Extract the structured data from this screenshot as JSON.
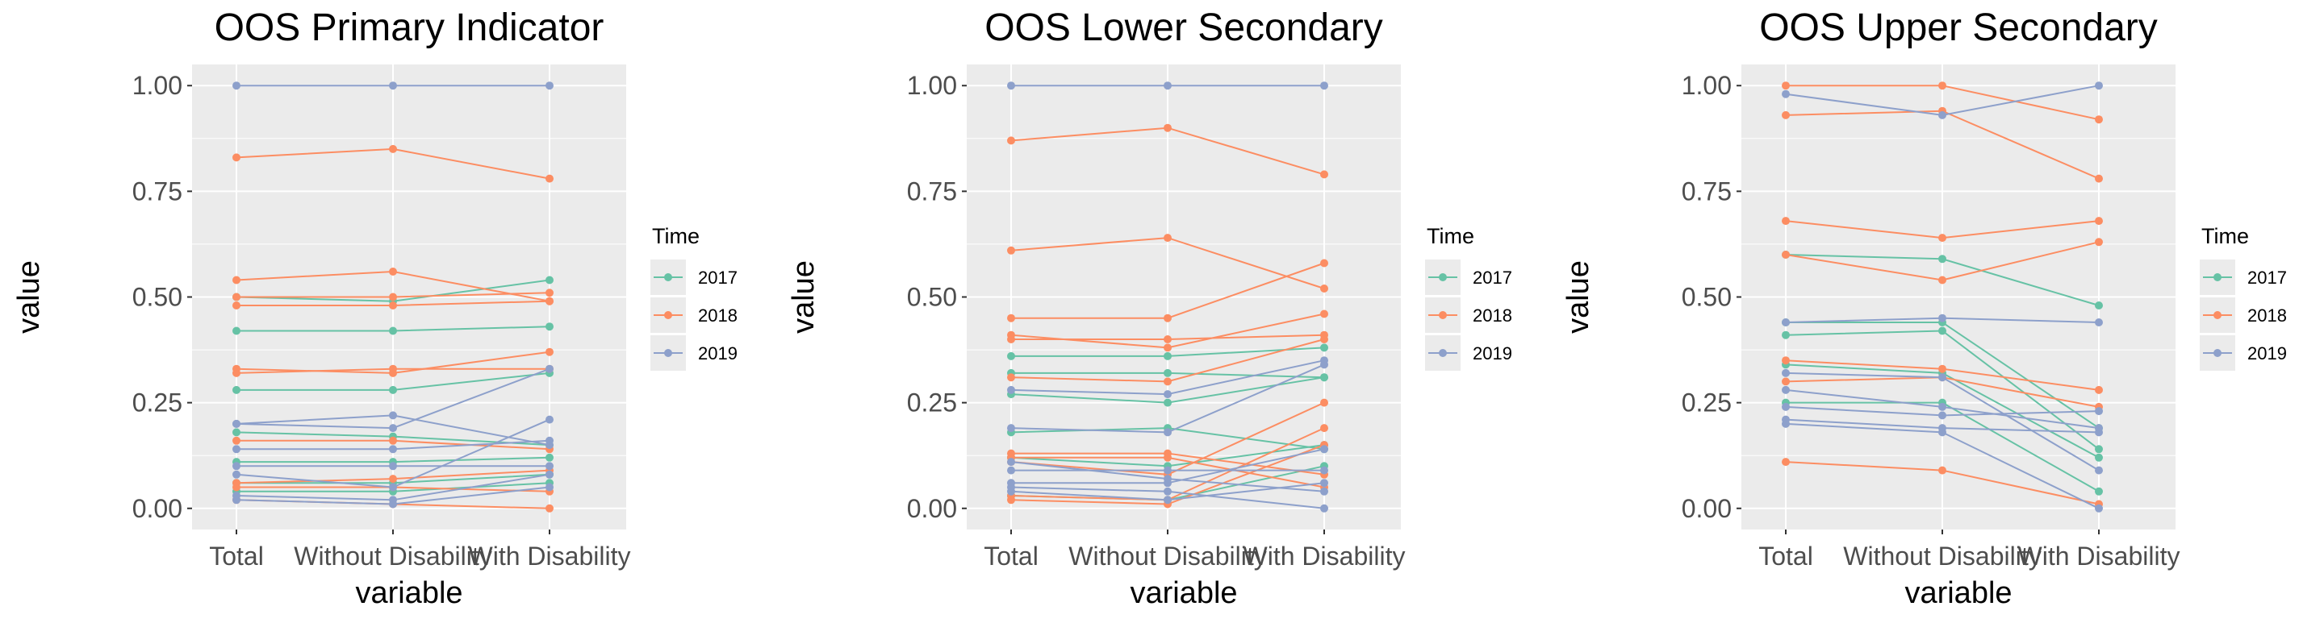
{
  "figure": {
    "axis_label_x": "variable",
    "axis_label_y": "value",
    "legend_title": "Time",
    "colors": {
      "2017": "#66C2A5",
      "2018": "#FC8D62",
      "2019": "#8DA0CB",
      "panel_bg": "#EBEBEB",
      "grid": "#FFFFFF"
    }
  },
  "chart_data": [
    {
      "type": "line",
      "title": "OOS Primary Indicator",
      "xlabel": "variable",
      "ylabel": "value",
      "categories": [
        "Total",
        "Without Disability",
        "With Disability"
      ],
      "ylim": [
        -0.05,
        1.05
      ],
      "yticks": [
        "0.00",
        "0.25",
        "0.50",
        "0.75",
        "1.00"
      ],
      "grid": true,
      "legend": {
        "title": "Time",
        "position": "right",
        "entries": [
          "2017",
          "2018",
          "2019"
        ]
      },
      "series": [
        {
          "time": "2017",
          "values": [
            0.5,
            0.49,
            0.54
          ]
        },
        {
          "time": "2017",
          "values": [
            0.42,
            0.42,
            0.43
          ]
        },
        {
          "time": "2017",
          "values": [
            0.28,
            0.28,
            0.32
          ]
        },
        {
          "time": "2017",
          "values": [
            0.18,
            0.17,
            0.15
          ]
        },
        {
          "time": "2017",
          "values": [
            0.11,
            0.11,
            0.12
          ]
        },
        {
          "time": "2017",
          "values": [
            0.06,
            0.06,
            0.08
          ]
        },
        {
          "time": "2017",
          "values": [
            0.04,
            0.04,
            0.06
          ]
        },
        {
          "time": "2018",
          "values": [
            0.83,
            0.85,
            0.78
          ]
        },
        {
          "time": "2018",
          "values": [
            0.54,
            0.56,
            0.49
          ]
        },
        {
          "time": "2018",
          "values": [
            0.5,
            0.5,
            0.51
          ]
        },
        {
          "time": "2018",
          "values": [
            0.48,
            0.48,
            0.49
          ]
        },
        {
          "time": "2018",
          "values": [
            0.33,
            0.32,
            0.37
          ]
        },
        {
          "time": "2018",
          "values": [
            0.32,
            0.33,
            0.33
          ]
        },
        {
          "time": "2018",
          "values": [
            0.16,
            0.16,
            0.14
          ]
        },
        {
          "time": "2018",
          "values": [
            0.06,
            0.07,
            0.09
          ]
        },
        {
          "time": "2018",
          "values": [
            0.05,
            0.05,
            0.04
          ]
        },
        {
          "time": "2018",
          "values": [
            0.02,
            0.01,
            0.0
          ]
        },
        {
          "time": "2019",
          "values": [
            1.0,
            1.0,
            1.0
          ]
        },
        {
          "time": "2019",
          "values": [
            0.2,
            0.22,
            0.15
          ]
        },
        {
          "time": "2019",
          "values": [
            0.2,
            0.19,
            0.33
          ]
        },
        {
          "time": "2019",
          "values": [
            0.14,
            0.14,
            0.16
          ]
        },
        {
          "time": "2019",
          "values": [
            0.1,
            0.1,
            0.1
          ]
        },
        {
          "time": "2019",
          "values": [
            0.08,
            0.05,
            0.21
          ]
        },
        {
          "time": "2019",
          "values": [
            0.03,
            0.02,
            0.08
          ]
        },
        {
          "time": "2019",
          "values": [
            0.02,
            0.01,
            0.05
          ]
        }
      ]
    },
    {
      "type": "line",
      "title": "OOS Lower Secondary",
      "xlabel": "variable",
      "ylabel": "value",
      "categories": [
        "Total",
        "Without Disability",
        "With Disability"
      ],
      "ylim": [
        -0.05,
        1.05
      ],
      "yticks": [
        "0.00",
        "0.25",
        "0.50",
        "0.75",
        "1.00"
      ],
      "grid": true,
      "legend": {
        "title": "Time",
        "position": "right",
        "entries": [
          "2017",
          "2018",
          "2019"
        ]
      },
      "series": [
        {
          "time": "2017",
          "values": [
            0.36,
            0.36,
            0.38
          ]
        },
        {
          "time": "2017",
          "values": [
            0.32,
            0.32,
            0.31
          ]
        },
        {
          "time": "2017",
          "values": [
            0.27,
            0.25,
            0.31
          ]
        },
        {
          "time": "2017",
          "values": [
            0.18,
            0.19,
            0.14
          ]
        },
        {
          "time": "2017",
          "values": [
            0.12,
            0.1,
            0.15
          ]
        },
        {
          "time": "2017",
          "values": [
            0.03,
            0.02,
            0.1
          ]
        },
        {
          "time": "2018",
          "values": [
            0.87,
            0.9,
            0.79
          ]
        },
        {
          "time": "2018",
          "values": [
            0.61,
            0.64,
            0.52
          ]
        },
        {
          "time": "2018",
          "values": [
            0.45,
            0.45,
            0.58
          ]
        },
        {
          "time": "2018",
          "values": [
            0.41,
            0.38,
            0.46
          ]
        },
        {
          "time": "2018",
          "values": [
            0.4,
            0.4,
            0.41
          ]
        },
        {
          "time": "2018",
          "values": [
            0.31,
            0.3,
            0.4
          ]
        },
        {
          "time": "2018",
          "values": [
            0.13,
            0.13,
            0.08
          ]
        },
        {
          "time": "2018",
          "values": [
            0.12,
            0.12,
            0.05
          ]
        },
        {
          "time": "2018",
          "values": [
            0.11,
            0.08,
            0.25
          ]
        },
        {
          "time": "2018",
          "values": [
            0.03,
            0.02,
            0.19
          ]
        },
        {
          "time": "2018",
          "values": [
            0.02,
            0.01,
            0.15
          ]
        },
        {
          "time": "2019",
          "values": [
            1.0,
            1.0,
            1.0
          ]
        },
        {
          "time": "2019",
          "values": [
            0.28,
            0.27,
            0.35
          ]
        },
        {
          "time": "2019",
          "values": [
            0.19,
            0.18,
            0.34
          ]
        },
        {
          "time": "2019",
          "values": [
            0.11,
            0.07,
            0.04
          ]
        },
        {
          "time": "2019",
          "values": [
            0.09,
            0.09,
            0.09
          ]
        },
        {
          "time": "2019",
          "values": [
            0.06,
            0.06,
            0.14
          ]
        },
        {
          "time": "2019",
          "values": [
            0.05,
            0.04,
            0.0
          ]
        },
        {
          "time": "2019",
          "values": [
            0.04,
            0.02,
            0.06
          ]
        }
      ]
    },
    {
      "type": "line",
      "title": "OOS Upper Secondary",
      "xlabel": "variable",
      "ylabel": "value",
      "categories": [
        "Total",
        "Without Disability",
        "With Disability"
      ],
      "ylim": [
        -0.05,
        1.05
      ],
      "yticks": [
        "0.00",
        "0.25",
        "0.50",
        "0.75",
        "1.00"
      ],
      "grid": true,
      "legend": {
        "title": "Time",
        "position": "right",
        "entries": [
          "2017",
          "2018",
          "2019"
        ]
      },
      "series": [
        {
          "time": "2017",
          "values": [
            0.6,
            0.59,
            0.48
          ]
        },
        {
          "time": "2017",
          "values": [
            0.44,
            0.44,
            0.19
          ]
        },
        {
          "time": "2017",
          "values": [
            0.41,
            0.42,
            0.14
          ]
        },
        {
          "time": "2017",
          "values": [
            0.34,
            0.32,
            0.12
          ]
        },
        {
          "time": "2017",
          "values": [
            0.25,
            0.25,
            0.04
          ]
        },
        {
          "time": "2018",
          "values": [
            1.0,
            1.0,
            0.92
          ]
        },
        {
          "time": "2018",
          "values": [
            0.93,
            0.94,
            0.78
          ]
        },
        {
          "time": "2018",
          "values": [
            0.68,
            0.64,
            0.68
          ]
        },
        {
          "time": "2018",
          "values": [
            0.6,
            0.54,
            0.63
          ]
        },
        {
          "time": "2018",
          "values": [
            0.35,
            0.33,
            0.28
          ]
        },
        {
          "time": "2018",
          "values": [
            0.3,
            0.31,
            0.24
          ]
        },
        {
          "time": "2018",
          "values": [
            0.11,
            0.09,
            0.01
          ]
        },
        {
          "time": "2019",
          "values": [
            0.98,
            0.93,
            1.0
          ]
        },
        {
          "time": "2019",
          "values": [
            0.44,
            0.45,
            0.44
          ]
        },
        {
          "time": "2019",
          "values": [
            0.32,
            0.31,
            0.09
          ]
        },
        {
          "time": "2019",
          "values": [
            0.28,
            0.24,
            0.19
          ]
        },
        {
          "time": "2019",
          "values": [
            0.24,
            0.22,
            0.23
          ]
        },
        {
          "time": "2019",
          "values": [
            0.21,
            0.19,
            0.18
          ]
        },
        {
          "time": "2019",
          "values": [
            0.2,
            0.18,
            0.0
          ]
        }
      ]
    }
  ]
}
